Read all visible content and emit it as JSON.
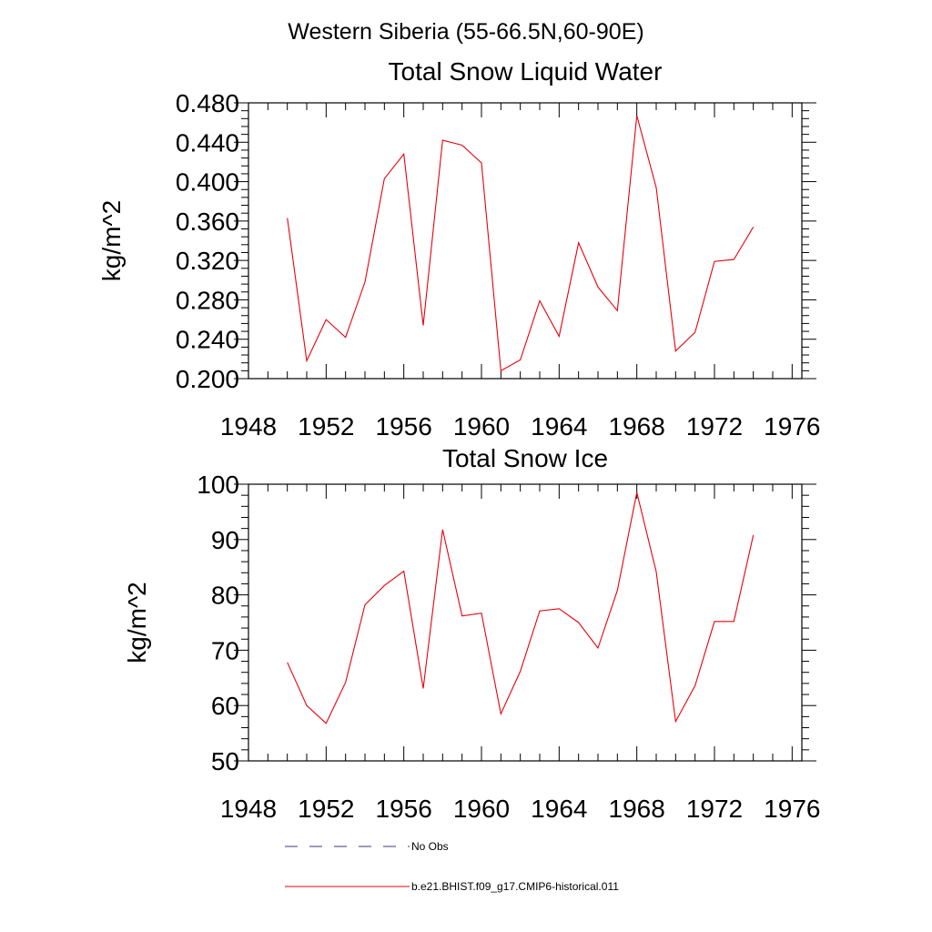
{
  "figure_title": "Western Siberia (55-66.5N,60-90E)",
  "colors": {
    "model_line": "#e8000b",
    "obs_line": "#3a3a7a",
    "axis": "#000000"
  },
  "legend": {
    "obs_label": "No Obs",
    "model_label": "b.e21.BHIST.f09_g17.CMIP6-historical.011"
  },
  "chart_data": [
    {
      "type": "line",
      "title": "Total Snow Liquid Water",
      "xlabel": "",
      "ylabel": "kg/m^2",
      "xlim": [
        1948,
        1976.5
      ],
      "ylim": [
        0.2,
        0.48
      ],
      "xticks": [
        "1948",
        "1952",
        "1956",
        "1960",
        "1964",
        "1968",
        "1972",
        "1976"
      ],
      "yticks": [
        "0.200",
        "0.240",
        "0.280",
        "0.320",
        "0.360",
        "0.400",
        "0.440",
        "0.480"
      ],
      "x": [
        1950,
        1951,
        1952,
        1953,
        1954,
        1955,
        1956,
        1957,
        1958,
        1959,
        1960,
        1961,
        1962,
        1963,
        1964,
        1965,
        1966,
        1967,
        1968,
        1969,
        1970,
        1971,
        1972,
        1973,
        1974
      ],
      "series": [
        {
          "name": "b.e21.BHIST.f09_g17.CMIP6-historical.011",
          "values": [
            0.363,
            0.218,
            0.26,
            0.242,
            0.298,
            0.403,
            0.428,
            0.254,
            0.442,
            0.437,
            0.419,
            0.208,
            0.219,
            0.279,
            0.243,
            0.338,
            0.293,
            0.269,
            0.467,
            0.394,
            0.228,
            0.247,
            0.319,
            0.321,
            0.354
          ]
        }
      ]
    },
    {
      "type": "line",
      "title": "Total Snow Ice",
      "xlabel": "",
      "ylabel": "kg/m^2",
      "xlim": [
        1948,
        1976.5
      ],
      "ylim": [
        50,
        100
      ],
      "xticks": [
        "1948",
        "1952",
        "1956",
        "1960",
        "1964",
        "1968",
        "1972",
        "1976"
      ],
      "yticks": [
        "50",
        "60",
        "70",
        "80",
        "90",
        "100"
      ],
      "x": [
        1950,
        1951,
        1952,
        1953,
        1954,
        1955,
        1956,
        1957,
        1958,
        1959,
        1960,
        1961,
        1962,
        1963,
        1964,
        1965,
        1966,
        1967,
        1968,
        1969,
        1970,
        1971,
        1972,
        1973,
        1974
      ],
      "series": [
        {
          "name": "b.e21.BHIST.f09_g17.CMIP6-historical.011",
          "values": [
            67.8,
            60.0,
            56.8,
            64.2,
            78.2,
            81.7,
            84.3,
            63.1,
            91.8,
            76.2,
            76.7,
            58.5,
            66.2,
            77.1,
            77.5,
            75.0,
            70.4,
            80.8,
            98.5,
            84.2,
            57.1,
            63.6,
            75.2,
            75.2,
            90.8
          ]
        }
      ]
    }
  ]
}
